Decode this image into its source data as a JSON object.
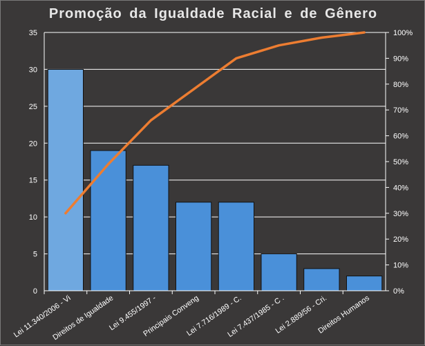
{
  "chart_data": {
    "type": "bar",
    "title": "Promoção da Igualdade Racial e de Gênero",
    "categories": [
      "Lei 11.340/2006 - Vi",
      "Direitos de Igualdade",
      "Lei 9.455/1997 -",
      "Principais Conveng",
      "Lei 7.716/1989 - C.",
      "Lei 7.437/1985 - C .",
      "Lei 2.889/56 - Cri.",
      "Direitos Humanos"
    ],
    "series": [
      {
        "type": "bar",
        "values": [
          30,
          19,
          17,
          12,
          12,
          5,
          3,
          2
        ]
      },
      {
        "type": "line",
        "axis": "right",
        "values": [
          30,
          49,
          66,
          78,
          90,
          95,
          98,
          100
        ]
      }
    ],
    "ylim": [
      0,
      35
    ],
    "yticks": [
      "0",
      "5",
      "10",
      "15",
      "20",
      "25",
      "30",
      "35"
    ],
    "y2lim": [
      0,
      100
    ],
    "y2ticks": [
      "0%",
      "10%",
      "20%",
      "30%",
      "40%",
      "50%",
      "60%",
      "70%",
      "80%",
      "90%",
      "100%"
    ],
    "grid": true,
    "legend": "none",
    "colors": {
      "bar": "#4a90d9",
      "bar_first": "#6fa8e0",
      "line": "#ed7d31",
      "background": "#3a3838",
      "grid": "#ffffff",
      "text": "#ffffff"
    }
  }
}
